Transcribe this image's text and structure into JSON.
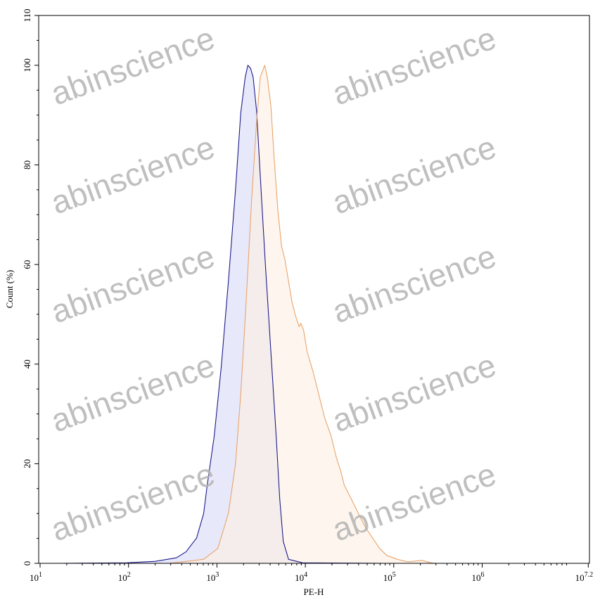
{
  "chart_data": {
    "type": "area",
    "xlabel": "PE-H",
    "ylabel": "Count (%)",
    "xscale": "log",
    "xlim": [
      10,
      15848932
    ],
    "ylim": [
      0,
      110
    ],
    "x_ticks": [
      {
        "base": "10",
        "exp": "1"
      },
      {
        "base": "10",
        "exp": "2"
      },
      {
        "base": "10",
        "exp": "3"
      },
      {
        "base": "10",
        "exp": "4"
      },
      {
        "base": "10",
        "exp": "5"
      },
      {
        "base": "10",
        "exp": "6"
      },
      {
        "base": "10",
        "exp": "7.2"
      }
    ],
    "y_ticks": [
      "0",
      "20",
      "40",
      "60",
      "80",
      "100",
      "110"
    ],
    "grid": false,
    "series": [
      {
        "color": "#1c1c8a",
        "fill": "#e4e4fa",
        "x": [
          17,
          95,
          200,
          347,
          447,
          589,
          708,
          776,
          933,
          1122,
          1349,
          1622,
          1862,
          2089,
          2239,
          2399,
          2570,
          2818,
          3090,
          3548,
          4074,
          4677,
          5129,
          5623,
          6457,
          9333,
          83176
        ],
        "y": [
          0,
          0.1,
          0.4,
          1.1,
          2.3,
          5.1,
          10,
          15.7,
          25.6,
          39.7,
          56.6,
          75,
          90.5,
          97.6,
          100,
          99.4,
          97.6,
          90.5,
          77.8,
          59.5,
          42.5,
          25.6,
          12.9,
          4.4,
          0.8,
          0.1,
          0
        ]
      },
      {
        "color": "#e8a46c",
        "fill": "#fdf0e2",
        "x": [
          288,
          708,
          1023,
          1349,
          1622,
          1862,
          2138,
          2455,
          2818,
          3090,
          3467,
          3715,
          4074,
          4467,
          4898,
          5370,
          5888,
          6457,
          7079,
          7762,
          8511,
          8913,
          9550,
          10471,
          12303,
          14791,
          16596,
          19498,
          22387,
          25119,
          27542,
          33113,
          39811,
          47863,
          57544,
          69183,
          83176,
          109648,
          144544,
          208930,
          263027,
          301995
        ],
        "y": [
          0,
          0.8,
          3,
          10,
          19.9,
          34,
          52.4,
          72.2,
          89.1,
          97.6,
          100,
          97.6,
          91.9,
          80.6,
          70.8,
          63.7,
          60.9,
          56.6,
          52.4,
          49.6,
          47.5,
          48.2,
          46.8,
          42.5,
          38.3,
          32.6,
          29.1,
          25.6,
          21.3,
          18.5,
          15.7,
          12.9,
          10,
          7.2,
          5.1,
          3,
          1.6,
          0.8,
          0.3,
          0.6,
          0.1,
          0
        ]
      }
    ]
  },
  "watermark": "abinscience"
}
